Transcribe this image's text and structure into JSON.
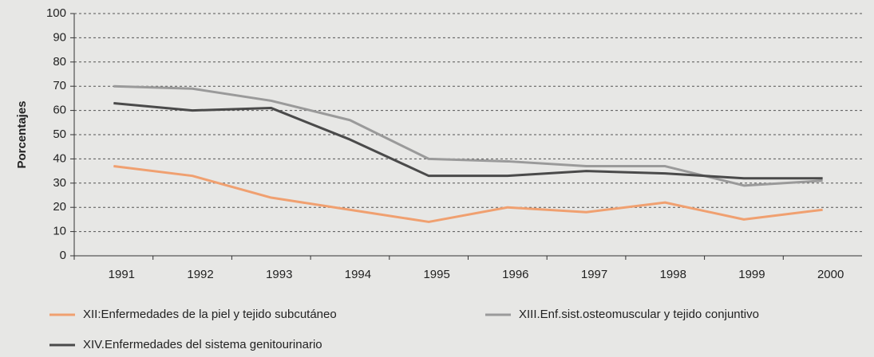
{
  "chart_data": {
    "type": "line",
    "y_label": "Porcentajes",
    "categories": [
      "1991",
      "1992",
      "1993",
      "1994",
      "1995",
      "1996",
      "1997",
      "1998",
      "1999",
      "2000"
    ],
    "series": [
      {
        "name": "XII:Enfermedades de la piel y tejido subcutáneo",
        "color": "#f0a070",
        "values": [
          37,
          33,
          24,
          19,
          14,
          20,
          18,
          22,
          15,
          19
        ]
      },
      {
        "name": "XIII.Enf.sist.osteomuscular y tejido conjuntivo",
        "color": "#9a9a9a",
        "values": [
          70,
          69,
          64,
          56,
          40,
          39,
          37,
          37,
          29,
          31
        ]
      },
      {
        "name": "XIV.Enfermedades del sistema genitourinario",
        "color": "#4a4a4a",
        "values": [
          63,
          60,
          61,
          48,
          33,
          33,
          35,
          34,
          32,
          32
        ]
      }
    ],
    "ylim": [
      0,
      100
    ],
    "yticks": [
      0,
      10,
      20,
      30,
      40,
      50,
      60,
      70,
      80,
      90,
      100
    ],
    "grid": true
  }
}
